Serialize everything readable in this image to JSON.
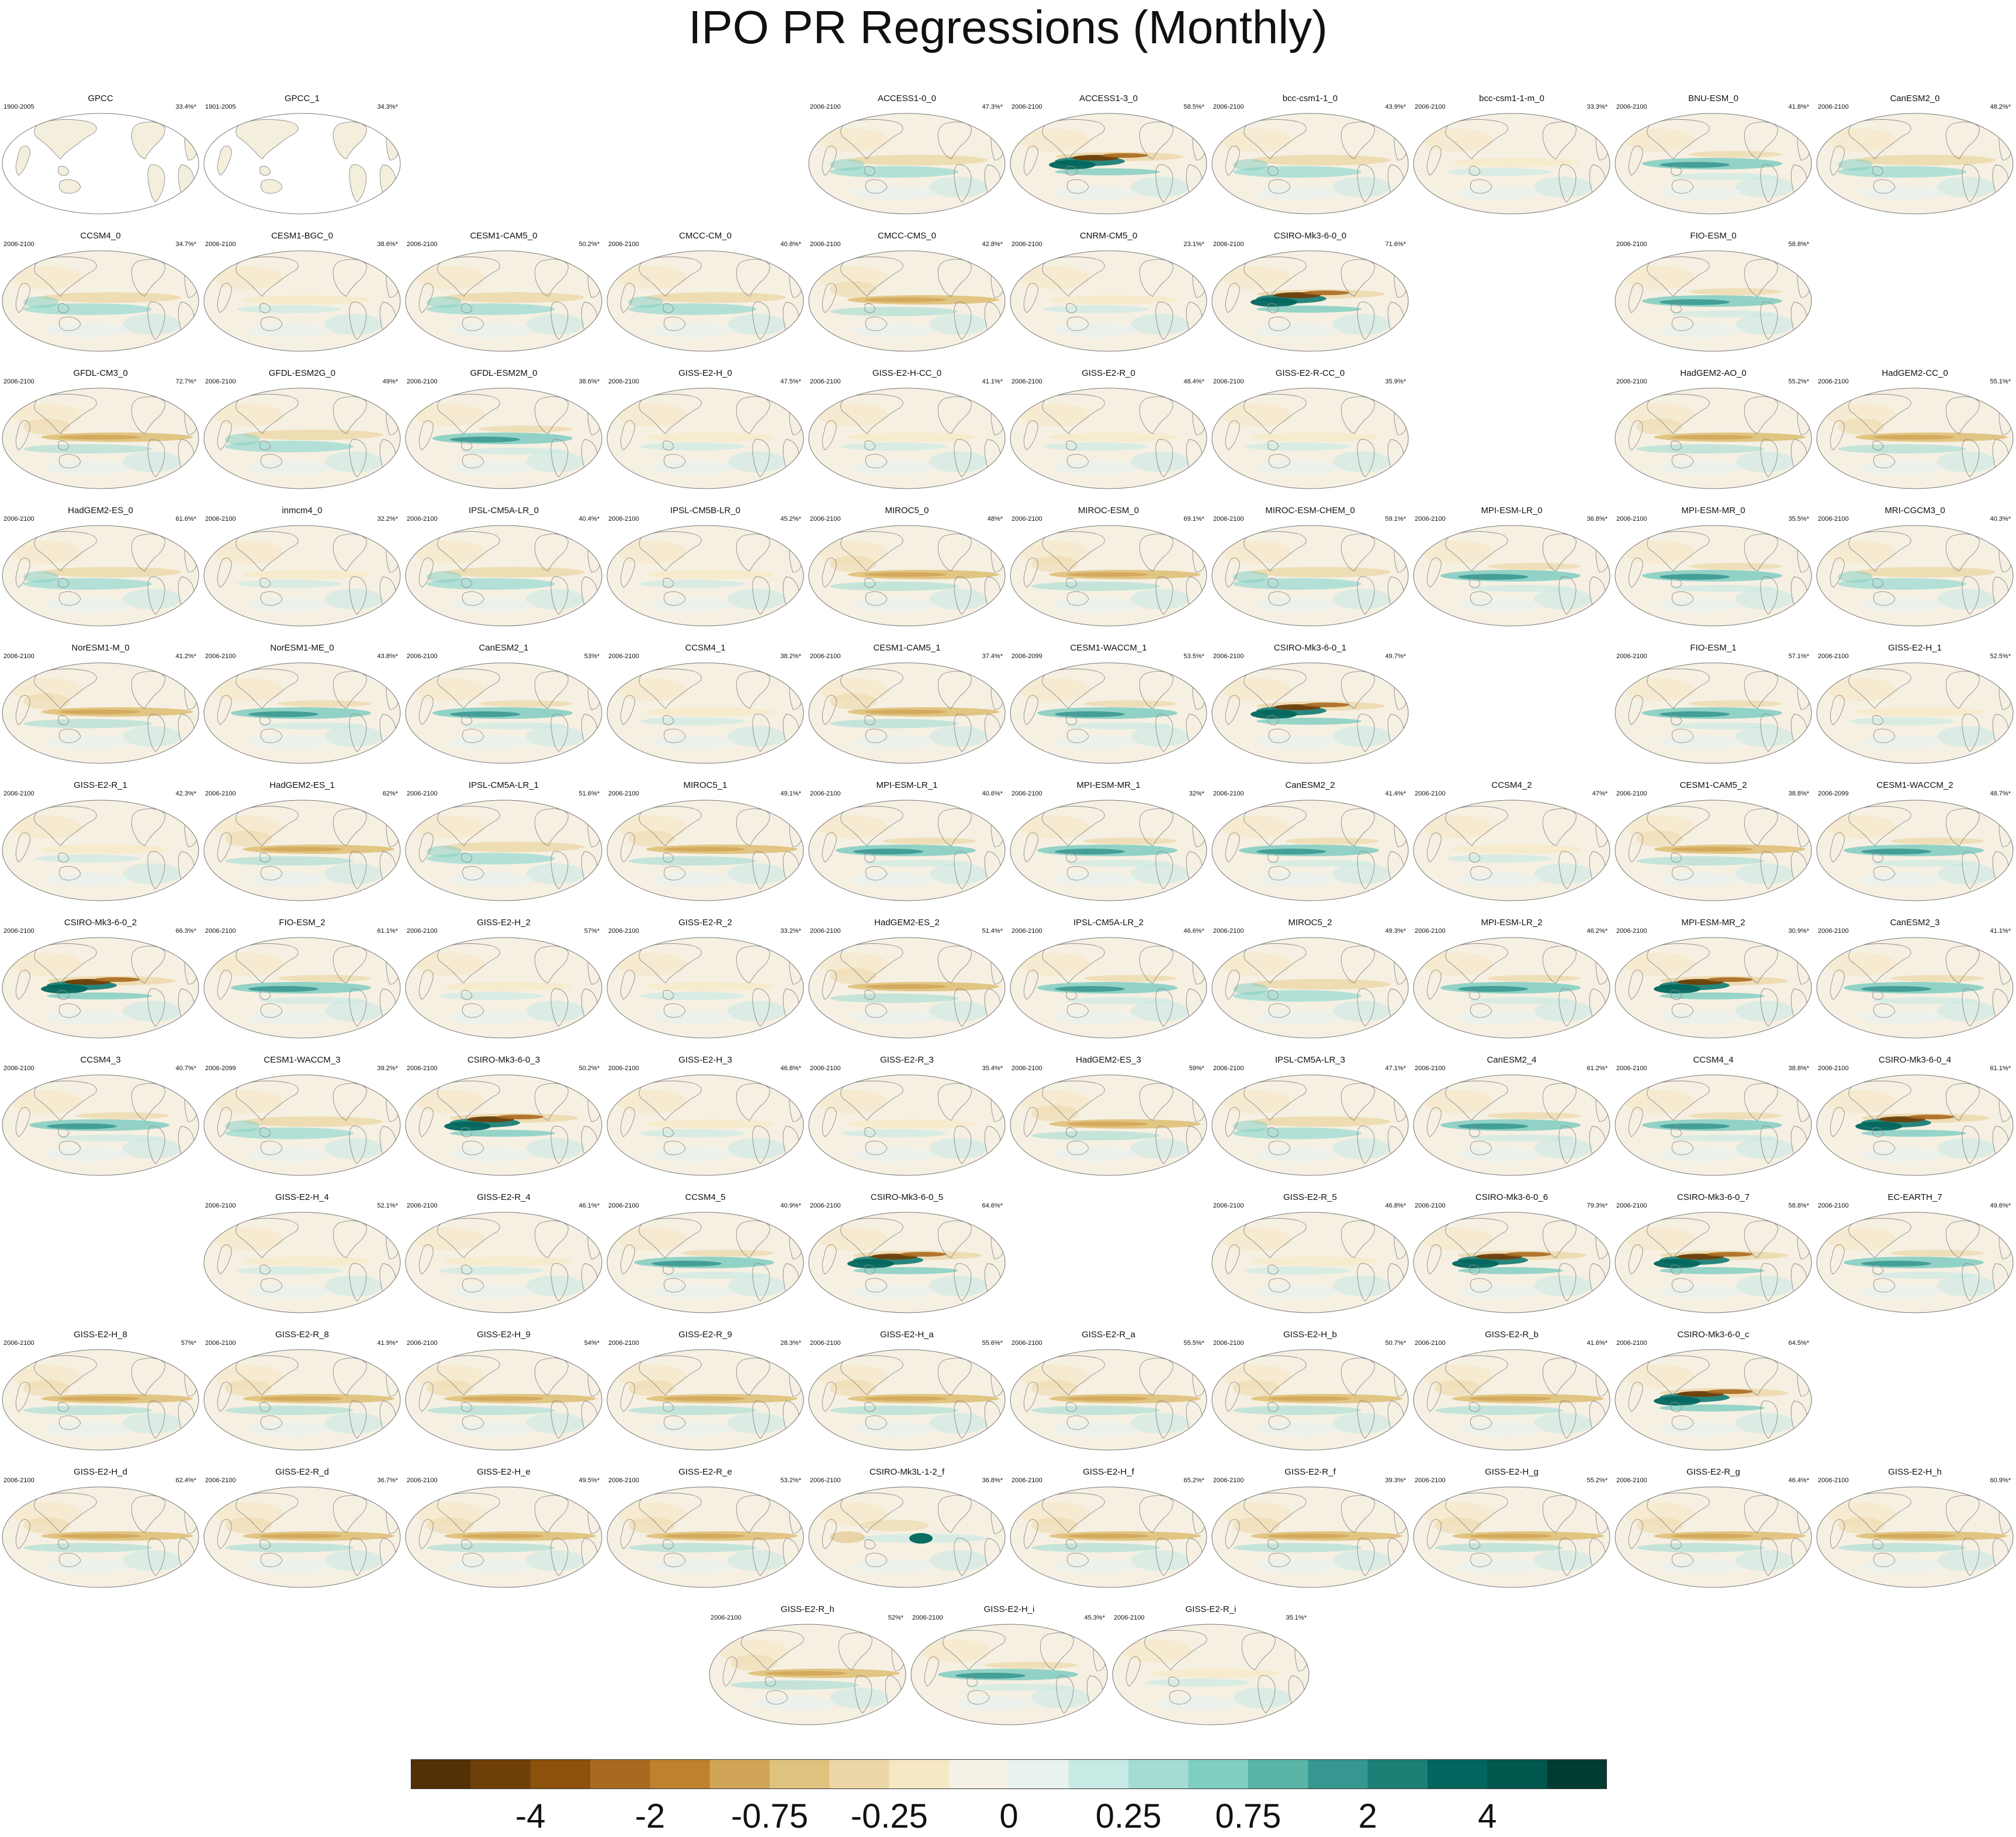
{
  "title": "IPO PR Regressions (Monthly)",
  "colorbar": {
    "colors": [
      "#543005",
      "#6f3f0a",
      "#8c510a",
      "#a96a20",
      "#bf812d",
      "#d1a458",
      "#dfc27d",
      "#ecd7a6",
      "#f6e8c3",
      "#f5f1e6",
      "#e8f2ee",
      "#c7eae5",
      "#a3dcd2",
      "#80cdc1",
      "#5ab4a8",
      "#35978f",
      "#1c8077",
      "#01665e",
      "#01564e",
      "#003c30"
    ],
    "labels": [
      "-4",
      "-2",
      "-0.75",
      "-0.25",
      "0",
      "0.25",
      "0.75",
      "2",
      "4"
    ]
  },
  "panels": [
    {
      "name": "GPCC",
      "years": "1900-2005",
      "pct": "33.4%*",
      "style": "obs"
    },
    {
      "name": "GPCC_1",
      "years": "1901-2005",
      "pct": "34.3%*",
      "style": "obs"
    },
    {
      "name": "ACCESS1-0_0",
      "years": "2006-2100",
      "pct": "47.3%*",
      "style": "model"
    },
    {
      "name": "ACCESS1-3_0",
      "years": "2006-2100",
      "pct": "58.5%*",
      "style": "strong"
    },
    {
      "name": "bcc-csm1-1_0",
      "years": "2006-2100",
      "pct": "43.9%*",
      "style": "model"
    },
    {
      "name": "bcc-csm1-1-m_0",
      "years": "2006-2100",
      "pct": "33.3%*",
      "style": "weak"
    },
    {
      "name": "BNU-ESM_0",
      "years": "2006-2100",
      "pct": "41.8%*",
      "style": "wet"
    },
    {
      "name": "CanESM2_0",
      "years": "2006-2100",
      "pct": "48.2%*",
      "style": "model"
    },
    {
      "name": "CCSM4_0",
      "years": "2006-2100",
      "pct": "34.7%*",
      "style": "model"
    },
    {
      "name": "CESM1-BGC_0",
      "years": "2006-2100",
      "pct": "38.6%*",
      "style": "weak"
    },
    {
      "name": "CESM1-CAM5_0",
      "years": "2006-2100",
      "pct": "50.2%*",
      "style": "model"
    },
    {
      "name": "CMCC-CM_0",
      "years": "2006-2100",
      "pct": "40.8%*",
      "style": "model"
    },
    {
      "name": "CMCC-CMS_0",
      "years": "2006-2100",
      "pct": "42.8%*",
      "style": "dry"
    },
    {
      "name": "CNRM-CM5_0",
      "years": "2006-2100",
      "pct": "23.1%*",
      "style": "weak"
    },
    {
      "name": "CSIRO-Mk3-6-0_0",
      "years": "2006-2100",
      "pct": "71.6%*",
      "style": "strong"
    },
    {
      "name": "FIO-ESM_0",
      "years": "2006-2100",
      "pct": "58.8%*",
      "style": "wet"
    },
    {
      "name": "GFDL-CM3_0",
      "years": "2006-2100",
      "pct": "72.7%*",
      "style": "dry"
    },
    {
      "name": "GFDL-ESM2G_0",
      "years": "2006-2100",
      "pct": "49%*",
      "style": "model"
    },
    {
      "name": "GFDL-ESM2M_0",
      "years": "2006-2100",
      "pct": "38.6%*",
      "style": "wet"
    },
    {
      "name": "GISS-E2-H_0",
      "years": "2006-2100",
      "pct": "47.5%*",
      "style": "weak"
    },
    {
      "name": "GISS-E2-H-CC_0",
      "years": "2006-2100",
      "pct": "41.1%*",
      "style": "weak"
    },
    {
      "name": "GISS-E2-R_0",
      "years": "2006-2100",
      "pct": "48.4%*",
      "style": "weak"
    },
    {
      "name": "GISS-E2-R-CC_0",
      "years": "2006-2100",
      "pct": "35.9%*",
      "style": "weak"
    },
    {
      "name": "HadGEM2-AO_0",
      "years": "2006-2100",
      "pct": "55.2%*",
      "style": "dry"
    },
    {
      "name": "HadGEM2-CC_0",
      "years": "2006-2100",
      "pct": "55.1%*",
      "style": "dry"
    },
    {
      "name": "HadGEM2-ES_0",
      "years": "2006-2100",
      "pct": "61.6%*",
      "style": "model"
    },
    {
      "name": "inmcm4_0",
      "years": "2006-2100",
      "pct": "32.2%*",
      "style": "weak"
    },
    {
      "name": "IPSL-CM5A-LR_0",
      "years": "2006-2100",
      "pct": "40.4%*",
      "style": "model"
    },
    {
      "name": "IPSL-CM5B-LR_0",
      "years": "2006-2100",
      "pct": "45.2%*",
      "style": "weak"
    },
    {
      "name": "MIROC5_0",
      "years": "2006-2100",
      "pct": "48%*",
      "style": "dry"
    },
    {
      "name": "MIROC-ESM_0",
      "years": "2006-2100",
      "pct": "69.1%*",
      "style": "dry"
    },
    {
      "name": "MIROC-ESM-CHEM_0",
      "years": "2006-2100",
      "pct": "59.1%*",
      "style": "model"
    },
    {
      "name": "MPI-ESM-LR_0",
      "years": "2006-2100",
      "pct": "36.8%*",
      "style": "wet"
    },
    {
      "name": "MPI-ESM-MR_0",
      "years": "2006-2100",
      "pct": "35.5%*",
      "style": "wet"
    },
    {
      "name": "MRI-CGCM3_0",
      "years": "2006-2100",
      "pct": "40.3%*",
      "style": "model"
    },
    {
      "name": "NorESM1-M_0",
      "years": "2006-2100",
      "pct": "41.2%*",
      "style": "dry"
    },
    {
      "name": "NorESM1-ME_0",
      "years": "2006-2100",
      "pct": "43.8%*",
      "style": "wet"
    },
    {
      "name": "CanESM2_1",
      "years": "2006-2100",
      "pct": "53%*",
      "style": "wet"
    },
    {
      "name": "CCSM4_1",
      "years": "2006-2100",
      "pct": "38.2%*",
      "style": "weak"
    },
    {
      "name": "CESM1-CAM5_1",
      "years": "2006-2100",
      "pct": "37.4%*",
      "style": "dry"
    },
    {
      "name": "CESM1-WACCM_1",
      "years": "2006-2099",
      "pct": "53.5%*",
      "style": "wet"
    },
    {
      "name": "CSIRO-Mk3-6-0_1",
      "years": "2006-2100",
      "pct": "49.7%*",
      "style": "strong"
    },
    {
      "name": "FIO-ESM_1",
      "years": "2006-2100",
      "pct": "57.1%*",
      "style": "wet"
    },
    {
      "name": "GISS-E2-H_1",
      "years": "2006-2100",
      "pct": "52.5%*",
      "style": "weak"
    },
    {
      "name": "GISS-E2-R_1",
      "years": "2006-2100",
      "pct": "42.3%*",
      "style": "weak"
    },
    {
      "name": "HadGEM2-ES_1",
      "years": "2006-2100",
      "pct": "62%*",
      "style": "dry"
    },
    {
      "name": "IPSL-CM5A-LR_1",
      "years": "2006-2100",
      "pct": "51.6%*",
      "style": "model"
    },
    {
      "name": "MIROC5_1",
      "years": "2006-2100",
      "pct": "49.1%*",
      "style": "dry"
    },
    {
      "name": "MPI-ESM-LR_1",
      "years": "2006-2100",
      "pct": "40.6%*",
      "style": "wet"
    },
    {
      "name": "MPI-ESM-MR_1",
      "years": "2006-2100",
      "pct": "32%*",
      "style": "wet"
    },
    {
      "name": "CanESM2_2",
      "years": "2006-2100",
      "pct": "41.4%*",
      "style": "wet"
    },
    {
      "name": "CCSM4_2",
      "years": "2006-2100",
      "pct": "47%*",
      "style": "weak"
    },
    {
      "name": "CESM1-CAM5_2",
      "years": "2006-2100",
      "pct": "38.8%*",
      "style": "dry"
    },
    {
      "name": "CESM1-WACCM_2",
      "years": "2006-2099",
      "pct": "48.7%*",
      "style": "wet"
    },
    {
      "name": "CSIRO-Mk3-6-0_2",
      "years": "2006-2100",
      "pct": "66.3%*",
      "style": "strong"
    },
    {
      "name": "FIO-ESM_2",
      "years": "2006-2100",
      "pct": "61.1%*",
      "style": "wet"
    },
    {
      "name": "GISS-E2-H_2",
      "years": "2006-2100",
      "pct": "57%*",
      "style": "weak"
    },
    {
      "name": "GISS-E2-R_2",
      "years": "2006-2100",
      "pct": "33.2%*",
      "style": "weak"
    },
    {
      "name": "HadGEM2-ES_2",
      "years": "2006-2100",
      "pct": "51.4%*",
      "style": "dry"
    },
    {
      "name": "IPSL-CM5A-LR_2",
      "years": "2006-2100",
      "pct": "46.6%*",
      "style": "wet"
    },
    {
      "name": "MIROC5_2",
      "years": "2006-2100",
      "pct": "49.3%*",
      "style": "model"
    },
    {
      "name": "MPI-ESM-LR_2",
      "years": "2006-2100",
      "pct": "46.2%*",
      "style": "wet"
    },
    {
      "name": "MPI-ESM-MR_2",
      "years": "2006-2100",
      "pct": "30.9%*",
      "style": "strong"
    },
    {
      "name": "CanESM2_3",
      "years": "2006-2100",
      "pct": "41.1%*",
      "style": "wet"
    },
    {
      "name": "CCSM4_3",
      "years": "2006-2100",
      "pct": "40.7%*",
      "style": "wet"
    },
    {
      "name": "CESM1-WACCM_3",
      "years": "2006-2099",
      "pct": "39.2%*",
      "style": "model"
    },
    {
      "name": "CSIRO-Mk3-6-0_3",
      "years": "2006-2100",
      "pct": "50.2%*",
      "style": "strong"
    },
    {
      "name": "GISS-E2-H_3",
      "years": "2006-2100",
      "pct": "46.8%*",
      "style": "weak"
    },
    {
      "name": "GISS-E2-R_3",
      "years": "2006-2100",
      "pct": "35.4%*",
      "style": "weak"
    },
    {
      "name": "HadGEM2-ES_3",
      "years": "2006-2100",
      "pct": "59%*",
      "style": "dry"
    },
    {
      "name": "IPSL-CM5A-LR_3",
      "years": "2006-2100",
      "pct": "47.1%*",
      "style": "model"
    },
    {
      "name": "CanESM2_4",
      "years": "2006-2100",
      "pct": "61.2%*",
      "style": "wet"
    },
    {
      "name": "CCSM4_4",
      "years": "2006-2100",
      "pct": "38.8%*",
      "style": "wet"
    },
    {
      "name": "CSIRO-Mk3-6-0_4",
      "years": "2006-2100",
      "pct": "61.1%*",
      "style": "strong"
    },
    {
      "name": "GISS-E2-H_4",
      "years": "2006-2100",
      "pct": "52.1%*",
      "style": "weak"
    },
    {
      "name": "GISS-E2-R_4",
      "years": "2006-2100",
      "pct": "46.1%*",
      "style": "weak"
    },
    {
      "name": "CCSM4_5",
      "years": "2006-2100",
      "pct": "40.9%*",
      "style": "wet"
    },
    {
      "name": "CSIRO-Mk3-6-0_5",
      "years": "2006-2100",
      "pct": "64.6%*",
      "style": "strong"
    },
    {
      "name": "GISS-E2-R_5",
      "years": "2006-2100",
      "pct": "46.8%*",
      "style": "weak"
    },
    {
      "name": "CSIRO-Mk3-6-0_6",
      "years": "2006-2100",
      "pct": "79.3%*",
      "style": "strong"
    },
    {
      "name": "CSIRO-Mk3-6-0_7",
      "years": "2006-2100",
      "pct": "58.8%*",
      "style": "strong"
    },
    {
      "name": "EC-EARTH_7",
      "years": "2006-2100",
      "pct": "49.6%*",
      "style": "wet"
    },
    {
      "name": "GISS-E2-H_8",
      "years": "2006-2100",
      "pct": "57%*",
      "style": "dry"
    },
    {
      "name": "GISS-E2-R_8",
      "years": "2006-2100",
      "pct": "41.9%*",
      "style": "dry"
    },
    {
      "name": "GISS-E2-H_9",
      "years": "2006-2100",
      "pct": "54%*",
      "style": "dry"
    },
    {
      "name": "GISS-E2-R_9",
      "years": "2006-2100",
      "pct": "28.3%*",
      "style": "dry"
    },
    {
      "name": "GISS-E2-H_a",
      "years": "2006-2100",
      "pct": "55.6%*",
      "style": "dry"
    },
    {
      "name": "GISS-E2-R_a",
      "years": "2006-2100",
      "pct": "55.5%*",
      "style": "dry"
    },
    {
      "name": "GISS-E2-H_b",
      "years": "2006-2100",
      "pct": "50.7%*",
      "style": "dry"
    },
    {
      "name": "GISS-E2-R_b",
      "years": "2006-2100",
      "pct": "41.6%*",
      "style": "dry"
    },
    {
      "name": "CSIRO-Mk3-6-0_c",
      "years": "2006-2100",
      "pct": "64.5%*",
      "style": "strong"
    },
    {
      "name": "GISS-E2-H_d",
      "years": "2006-2100",
      "pct": "62.4%*",
      "style": "dry"
    },
    {
      "name": "GISS-E2-R_d",
      "years": "2006-2100",
      "pct": "36.7%*",
      "style": "dry"
    },
    {
      "name": "GISS-E2-H_e",
      "years": "2006-2100",
      "pct": "49.5%*",
      "style": "dry"
    },
    {
      "name": "GISS-E2-R_e",
      "years": "2006-2100",
      "pct": "53.2%*",
      "style": "dry"
    },
    {
      "name": "CSIRO-Mk3L-1-2_f",
      "years": "2006-2100",
      "pct": "36.8%*",
      "style": "mk3l"
    },
    {
      "name": "GISS-E2-H_f",
      "years": "2006-2100",
      "pct": "65.2%*",
      "style": "dry"
    },
    {
      "name": "GISS-E2-R_f",
      "years": "2006-2100",
      "pct": "39.3%*",
      "style": "dry"
    },
    {
      "name": "GISS-E2-H_g",
      "years": "2006-2100",
      "pct": "55.2%*",
      "style": "dry"
    },
    {
      "name": "GISS-E2-R_g",
      "years": "2006-2100",
      "pct": "46.4%*",
      "style": "dry"
    },
    {
      "name": "GISS-E2-H_h",
      "years": "2006-2100",
      "pct": "60.9%*",
      "style": "dry"
    },
    {
      "name": "GISS-E2-R_h",
      "years": "2006-2100",
      "pct": "52%*",
      "style": "dry"
    },
    {
      "name": "GISS-E2-H_i",
      "years": "2006-2100",
      "pct": "45.3%*",
      "style": "wet"
    },
    {
      "name": "GISS-E2-R_i",
      "years": "2006-2100",
      "pct": "35.1%*",
      "style": "weak"
    }
  ]
}
